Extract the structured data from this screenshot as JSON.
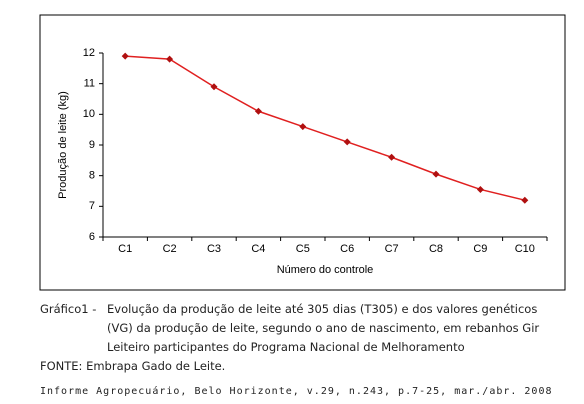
{
  "chart_data": {
    "type": "line",
    "x_label": "Número do controle",
    "y_label": "Produção de leite (kg)",
    "categories": [
      "C1",
      "C2",
      "C3",
      "C4",
      "C5",
      "C6",
      "C7",
      "C8",
      "C9",
      "C10"
    ],
    "values": [
      11.9,
      11.8,
      10.9,
      10.1,
      9.6,
      9.1,
      8.6,
      8.05,
      7.55,
      7.2
    ],
    "color": "#e02020",
    "marker_color": "#b01010",
    "ylim": [
      6,
      12
    ],
    "yticks": [
      6,
      7,
      8,
      9,
      10,
      11,
      12
    ],
    "grid": false
  },
  "caption": {
    "label": "Gráfico1 -",
    "lines": [
      "Evolução da produção de leite até 305 dias (T305) e dos valores genéticos",
      "(VG) da produção de leite, segundo o ano de nascimento, em rebanhos Gir",
      "Leiteiro participantes do Programa Nacional de Melhoramento"
    ],
    "source": "FONTE: Embrapa Gado de Leite.",
    "citation": "Informe Agropecuário, Belo Horizonte, v.29, n.243, p.7-25, mar./abr. 2008"
  }
}
